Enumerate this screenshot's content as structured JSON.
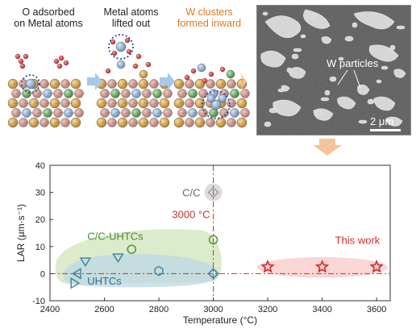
{
  "top": {
    "stage1": "O adsorbed\non Metal atoms",
    "stage2": "Metal atoms\nlifted out",
    "stage3": "W clusters\nformed inward",
    "sem_label": "W particles",
    "scale_label": "2 μm",
    "stage3_color": "#e07a20"
  },
  "chart_data": {
    "type": "scatter",
    "xlabel": "Temperature (°C)",
    "ylabel": "LAR (μm·s⁻¹)",
    "xlim": [
      2400,
      3650
    ],
    "ylim": [
      -10,
      40
    ],
    "xticks": [
      2400,
      2600,
      2800,
      3000,
      3200,
      3400,
      3600
    ],
    "yticks": [
      -10,
      0,
      10,
      20,
      30,
      40
    ],
    "reference_line_label": "3000 °C",
    "reference_x": 3000,
    "reference_y": 0,
    "groups": [
      {
        "name": "C/C",
        "marker": "diamond",
        "color": "#999999",
        "points": [
          [
            3000,
            30
          ]
        ]
      },
      {
        "name": "C/C-UHTCs",
        "marker": "circle",
        "color": "#5a9a3a",
        "points": [
          [
            2700,
            9
          ],
          [
            3000,
            12.5
          ]
        ]
      },
      {
        "name": "UHTCs",
        "marker": "mixed",
        "color": "#3b7fa0",
        "points": [
          {
            "x": 2490,
            "y": -3.5,
            "m": "tri-right"
          },
          {
            "x": 2500,
            "y": 0,
            "m": "tri-left"
          },
          {
            "x": 2530,
            "y": 4.5,
            "m": "tri-down"
          },
          {
            "x": 2650,
            "y": 6,
            "m": "tri-down"
          },
          {
            "x": 2800,
            "y": 1,
            "m": "hexagon"
          },
          {
            "x": 3000,
            "y": 0,
            "m": "diamond"
          }
        ]
      },
      {
        "name": "This work",
        "marker": "star",
        "color": "#d62828",
        "points": [
          [
            3200,
            2.5
          ],
          [
            3400,
            2.5
          ],
          [
            3600,
            2.5
          ]
        ]
      }
    ]
  }
}
